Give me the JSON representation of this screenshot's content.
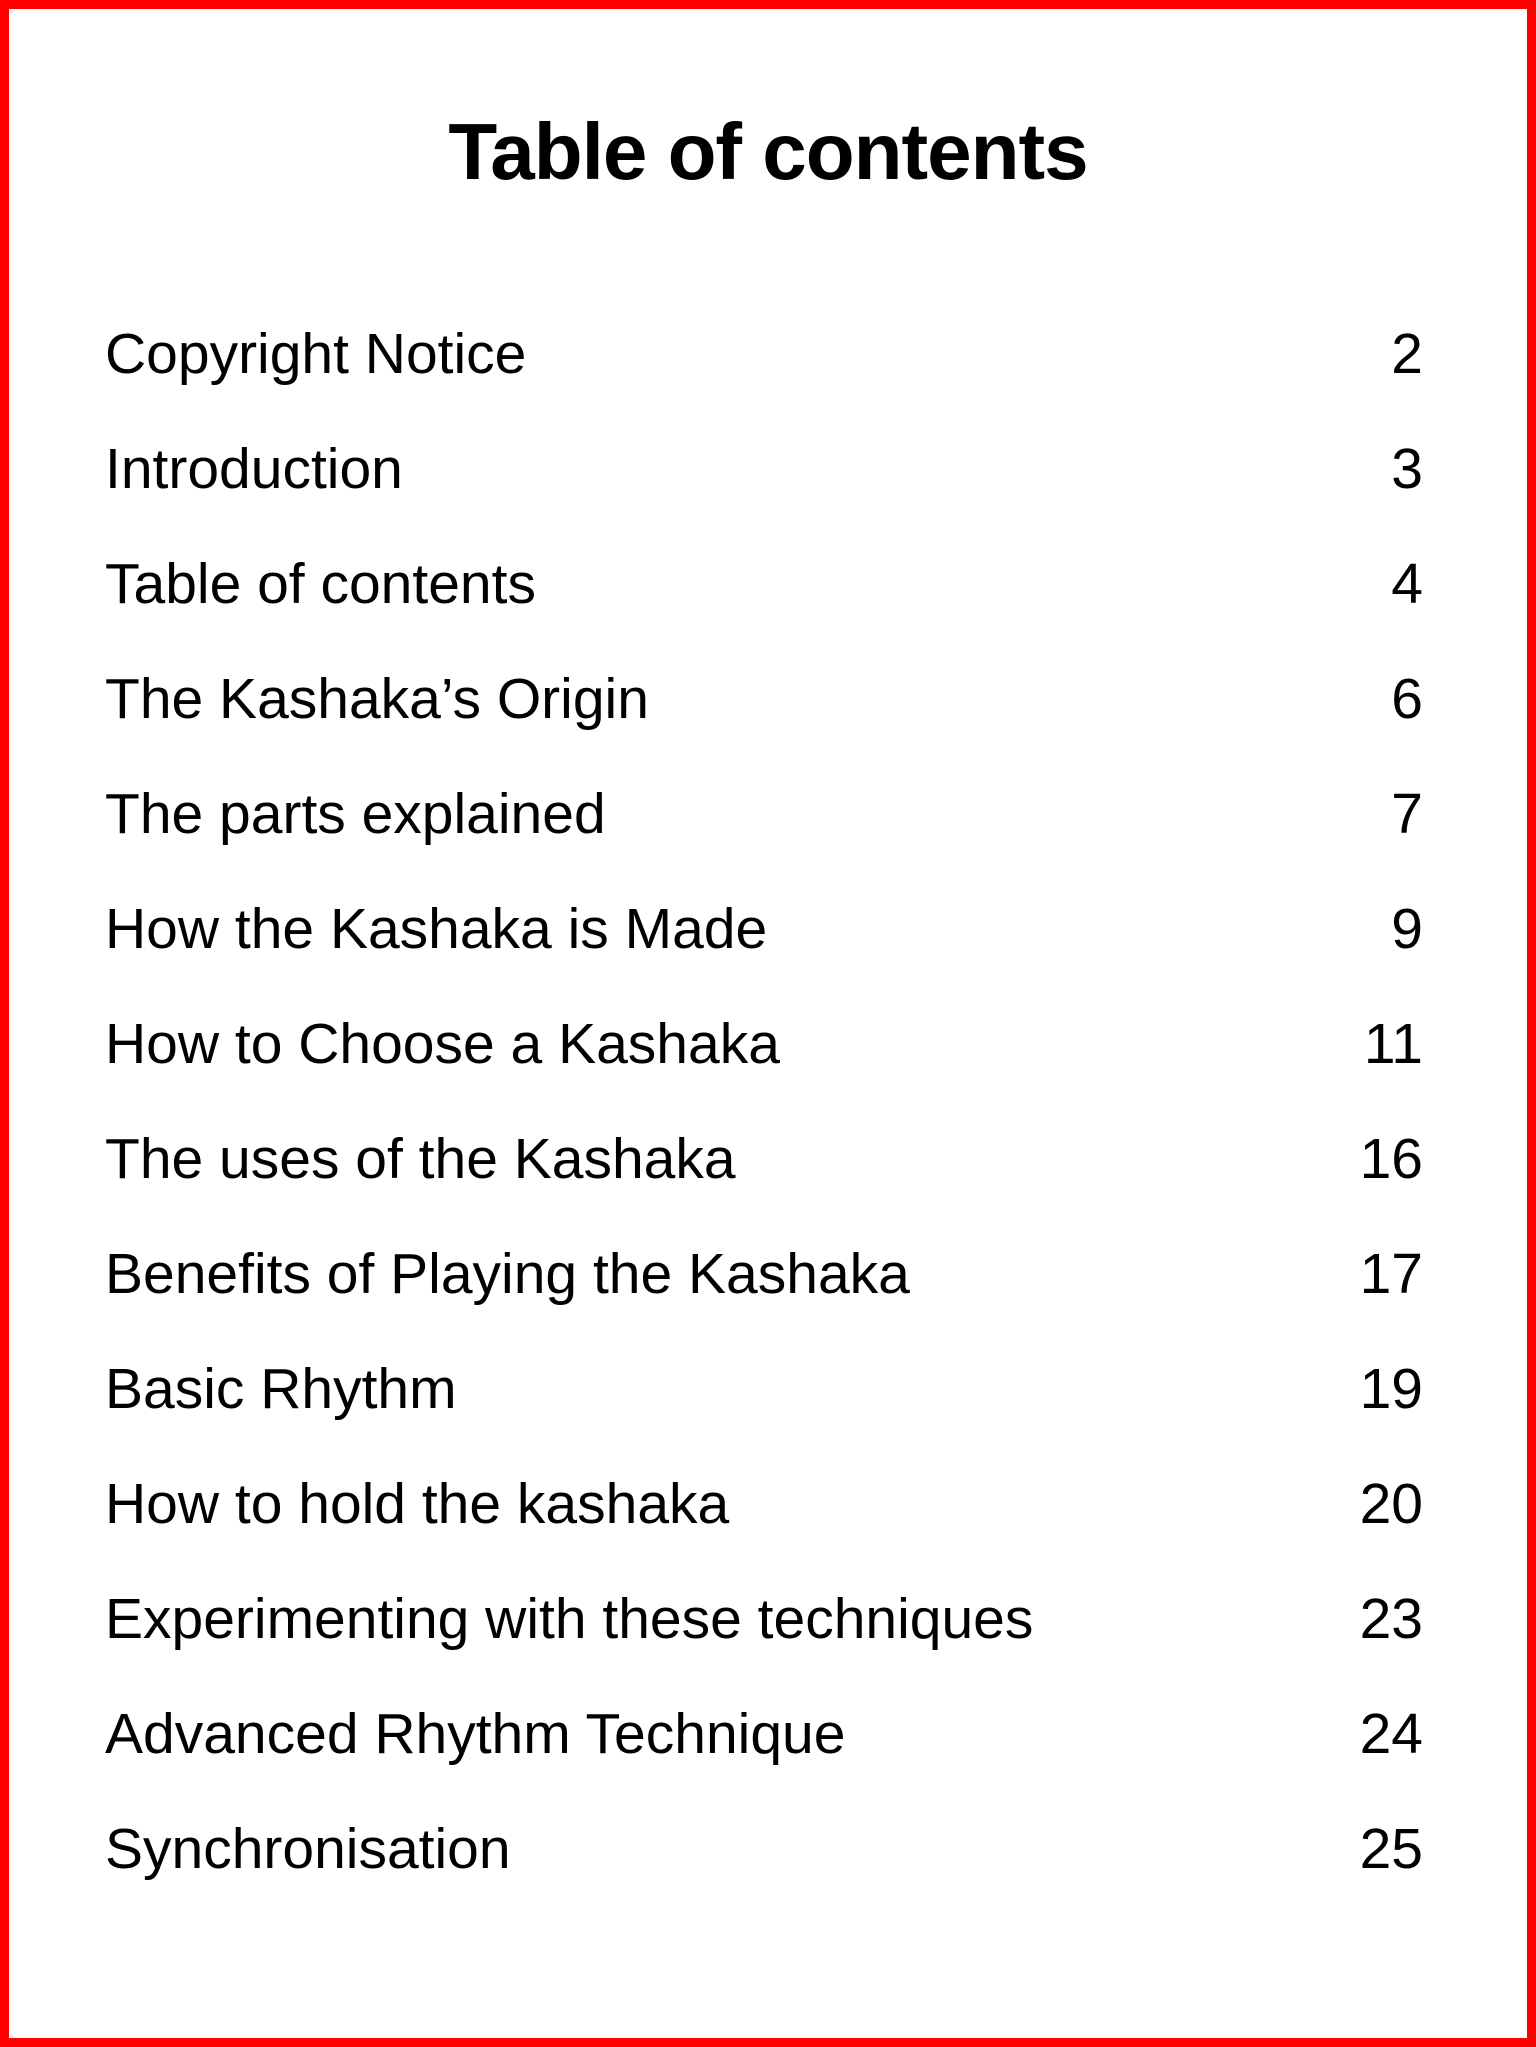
{
  "page": {
    "background": "#ffffff",
    "text_color": "#000000",
    "border_color": "#ff0000"
  },
  "title": "Table of contents",
  "toc": {
    "entries": [
      {
        "label": "Copyright Notice",
        "page": "2"
      },
      {
        "label": "Introduction",
        "page": "3"
      },
      {
        "label": "Table of contents",
        "page": "4"
      },
      {
        "label": "The Kashaka’s Origin",
        "page": "6"
      },
      {
        "label": "The parts explained",
        "page": "7"
      },
      {
        "label": "How the Kashaka is Made",
        "page": "9"
      },
      {
        "label": "How to Choose a Kashaka",
        "page": "11"
      },
      {
        "label": "The uses of the Kashaka",
        "page": "16"
      },
      {
        "label": "Benefits of Playing the Kashaka",
        "page": "17"
      },
      {
        "label": "Basic Rhythm",
        "page": "19"
      },
      {
        "label": "How to hold the kashaka",
        "page": "20"
      },
      {
        "label": "Experimenting with these techniques",
        "page": "23"
      },
      {
        "label": "Advanced Rhythm Technique",
        "page": "24"
      },
      {
        "label": "Synchronisation",
        "page": "25"
      }
    ]
  }
}
